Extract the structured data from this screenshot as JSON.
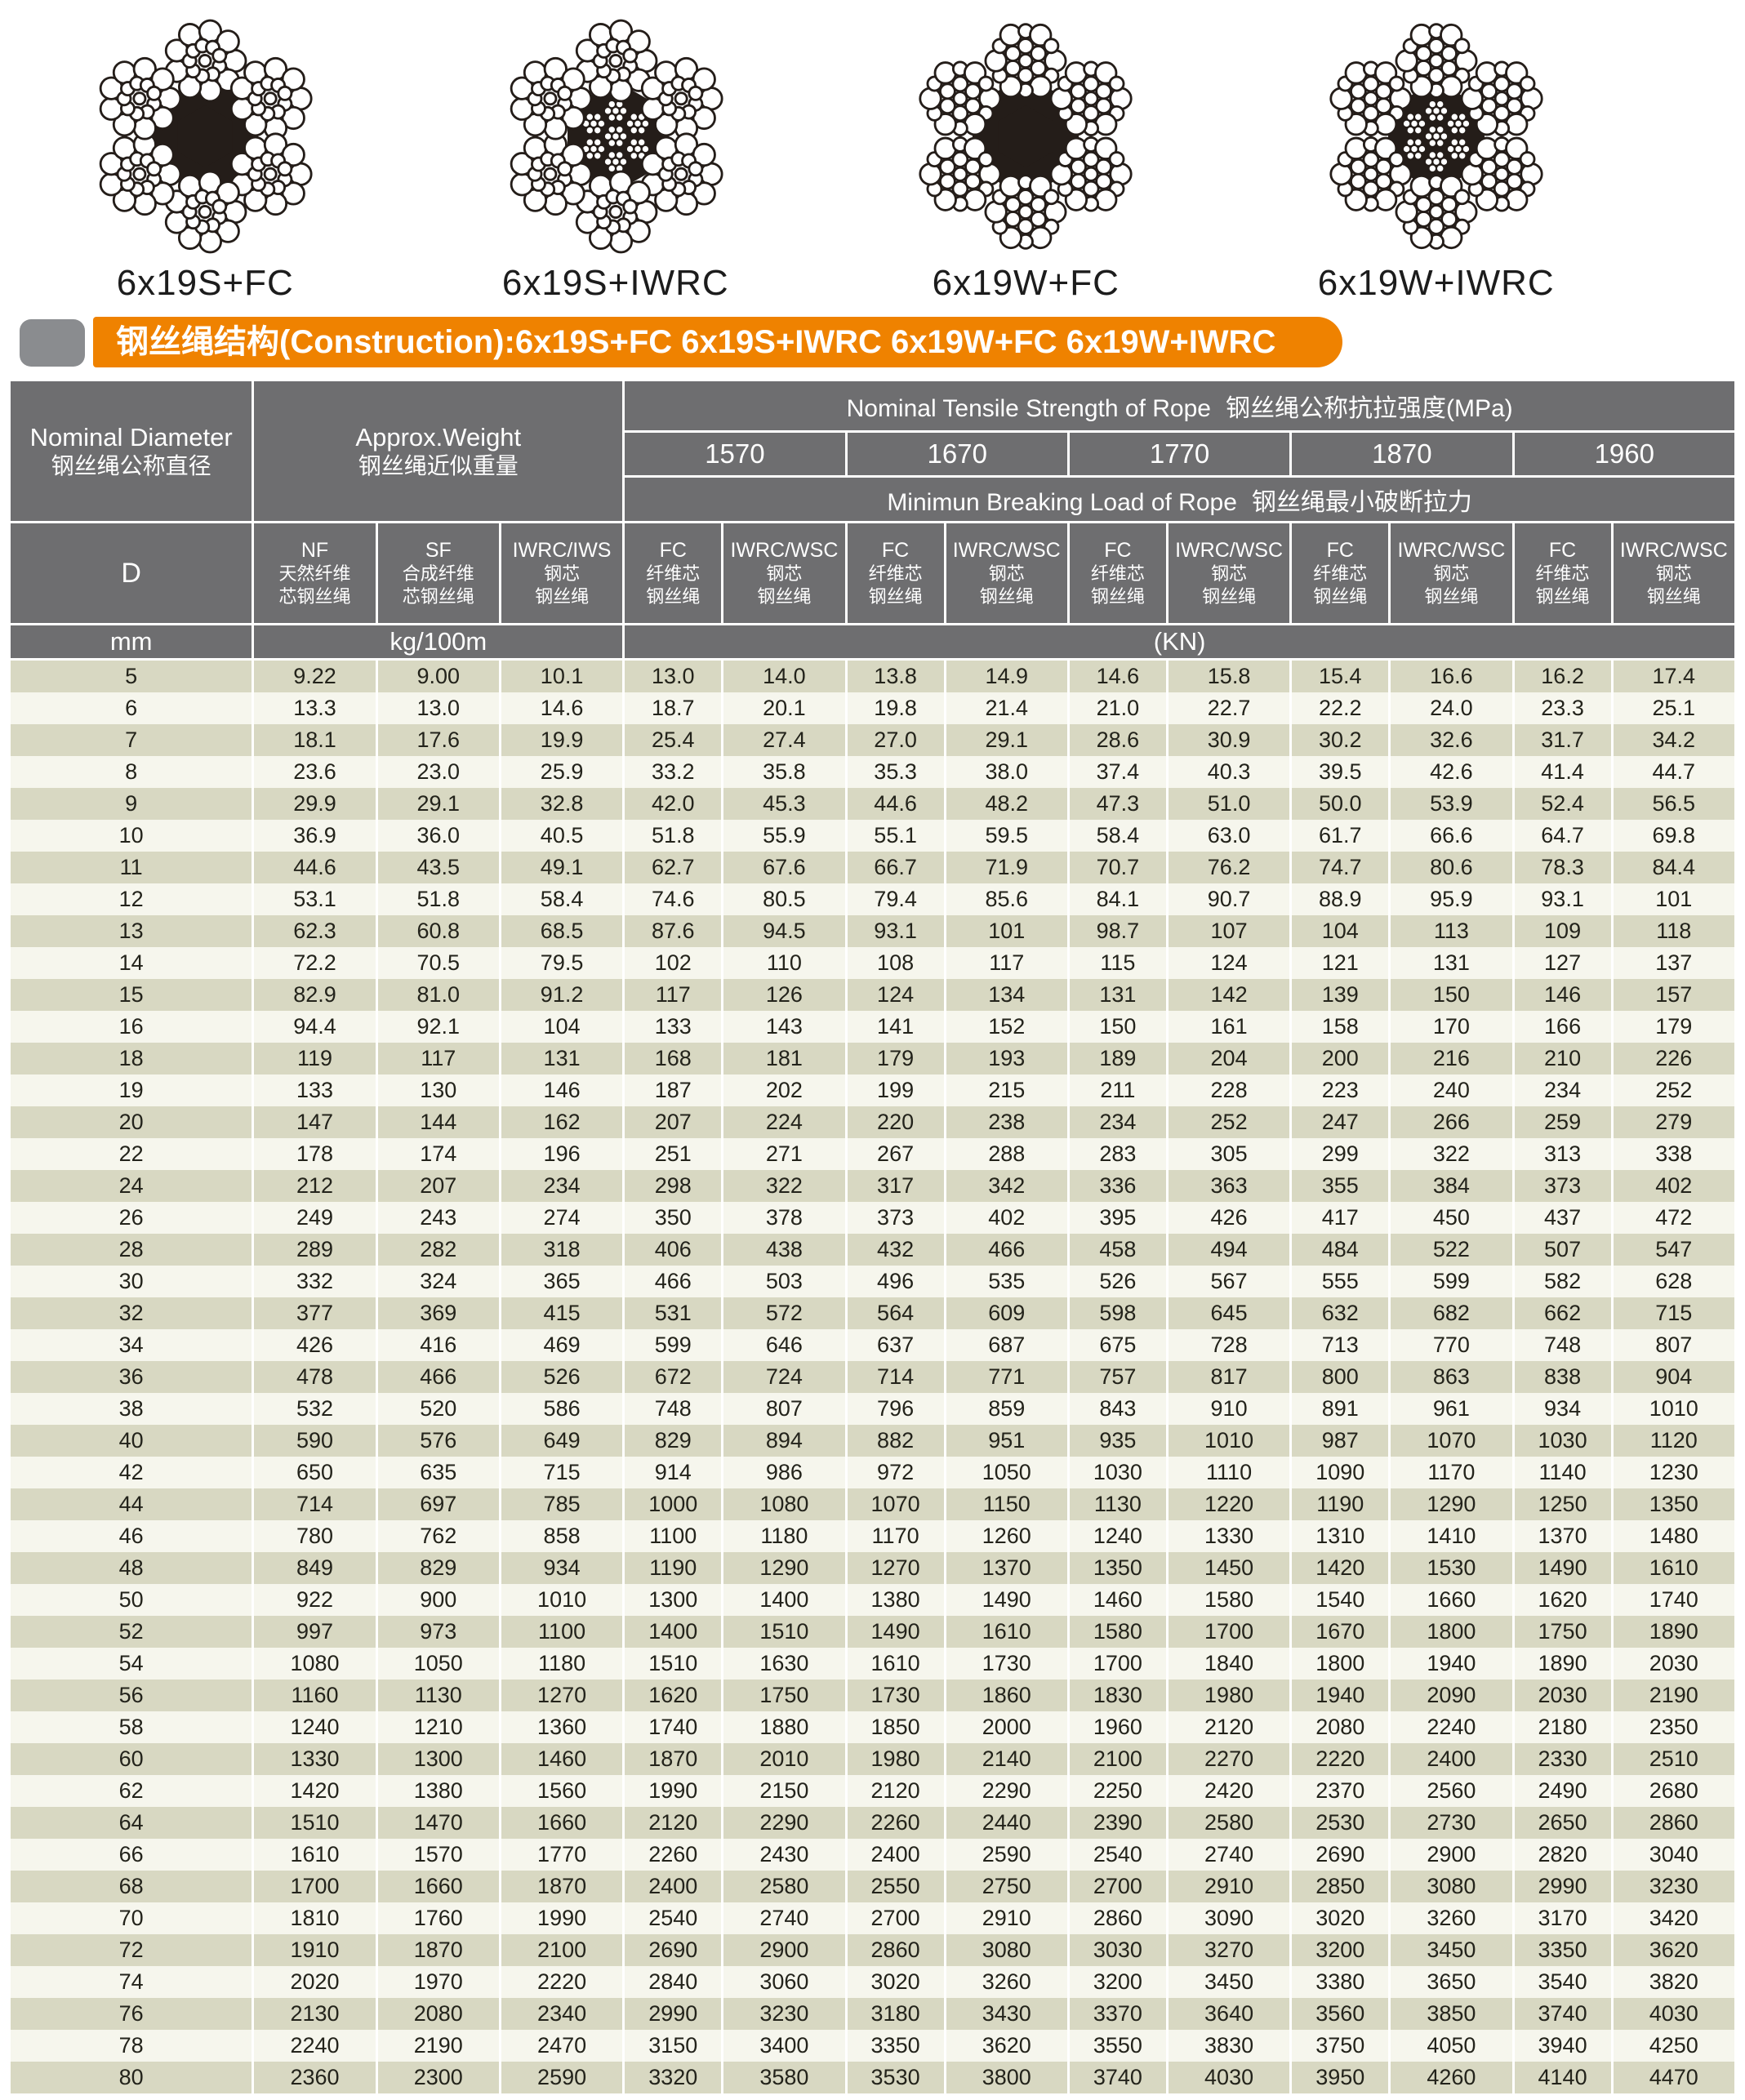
{
  "ropes": [
    {
      "label": "6x19S+FC",
      "core": "fc",
      "strand": "seale"
    },
    {
      "label": "6x19S+IWRC",
      "core": "iwrc",
      "strand": "seale"
    },
    {
      "label": "6x19W+FC",
      "core": "fc",
      "strand": "warrington"
    },
    {
      "label": "6x19W+IWRC",
      "core": "iwrc",
      "strand": "warrington"
    }
  ],
  "banner": {
    "text": "钢丝绳结构(Construction):6x19S+FC 6x19S+IWRC  6x19W+FC 6x19W+IWRC",
    "color": "#ef8200"
  },
  "colors": {
    "header_gray": "#6e6e70",
    "row_dark": "#d8d8c2",
    "row_light": "#f6f6ed",
    "banner_orange": "#ef8200"
  },
  "table": {
    "header": {
      "diameter": {
        "en": "Nominal Diameter",
        "zh": "钢丝绳公称直径",
        "symbol": "D",
        "unit": "mm"
      },
      "weight": {
        "en": "Approx.Weight",
        "zh": "钢丝绳近似重量",
        "unit": "kg/100m"
      },
      "weight_columns": [
        {
          "code": "NF",
          "zh1": "天然纤维",
          "zh2": "芯钢丝绳"
        },
        {
          "code": "SF",
          "zh1": "合成纤维",
          "zh2": "芯钢丝绳"
        },
        {
          "code": "IWRC/IWS",
          "zh1": "钢芯",
          "zh2": "钢丝绳"
        }
      ],
      "tensile_title": {
        "en": "Nominal Tensile Strength of Rope",
        "zh": "钢丝绳公称抗拉强度(MPa)"
      },
      "grades": [
        "1570",
        "1670",
        "1770",
        "1870",
        "1960"
      ],
      "breaking_title": {
        "en": "Minimun Breaking Load of Rope",
        "zh": "钢丝绳最小破断拉力"
      },
      "load_columns": [
        {
          "code": "FC",
          "zh1": "纤维芯",
          "zh2": "钢丝绳"
        },
        {
          "code": "IWRC/WSC",
          "zh1": "钢芯",
          "zh2": "钢丝绳"
        }
      ],
      "load_unit": "(KN)"
    },
    "rows": [
      [
        "5",
        "9.22",
        "9.00",
        "10.1",
        "13.0",
        "14.0",
        "13.8",
        "14.9",
        "14.6",
        "15.8",
        "15.4",
        "16.6",
        "16.2",
        "17.4"
      ],
      [
        "6",
        "13.3",
        "13.0",
        "14.6",
        "18.7",
        "20.1",
        "19.8",
        "21.4",
        "21.0",
        "22.7",
        "22.2",
        "24.0",
        "23.3",
        "25.1"
      ],
      [
        "7",
        "18.1",
        "17.6",
        "19.9",
        "25.4",
        "27.4",
        "27.0",
        "29.1",
        "28.6",
        "30.9",
        "30.2",
        "32.6",
        "31.7",
        "34.2"
      ],
      [
        "8",
        "23.6",
        "23.0",
        "25.9",
        "33.2",
        "35.8",
        "35.3",
        "38.0",
        "37.4",
        "40.3",
        "39.5",
        "42.6",
        "41.4",
        "44.7"
      ],
      [
        "9",
        "29.9",
        "29.1",
        "32.8",
        "42.0",
        "45.3",
        "44.6",
        "48.2",
        "47.3",
        "51.0",
        "50.0",
        "53.9",
        "52.4",
        "56.5"
      ],
      [
        "10",
        "36.9",
        "36.0",
        "40.5",
        "51.8",
        "55.9",
        "55.1",
        "59.5",
        "58.4",
        "63.0",
        "61.7",
        "66.6",
        "64.7",
        "69.8"
      ],
      [
        "11",
        "44.6",
        "43.5",
        "49.1",
        "62.7",
        "67.6",
        "66.7",
        "71.9",
        "70.7",
        "76.2",
        "74.7",
        "80.6",
        "78.3",
        "84.4"
      ],
      [
        "12",
        "53.1",
        "51.8",
        "58.4",
        "74.6",
        "80.5",
        "79.4",
        "85.6",
        "84.1",
        "90.7",
        "88.9",
        "95.9",
        "93.1",
        "101"
      ],
      [
        "13",
        "62.3",
        "60.8",
        "68.5",
        "87.6",
        "94.5",
        "93.1",
        "101",
        "98.7",
        "107",
        "104",
        "113",
        "109",
        "118"
      ],
      [
        "14",
        "72.2",
        "70.5",
        "79.5",
        "102",
        "110",
        "108",
        "117",
        "115",
        "124",
        "121",
        "131",
        "127",
        "137"
      ],
      [
        "15",
        "82.9",
        "81.0",
        "91.2",
        "117",
        "126",
        "124",
        "134",
        "131",
        "142",
        "139",
        "150",
        "146",
        "157"
      ],
      [
        "16",
        "94.4",
        "92.1",
        "104",
        "133",
        "143",
        "141",
        "152",
        "150",
        "161",
        "158",
        "170",
        "166",
        "179"
      ],
      [
        "18",
        "119",
        "117",
        "131",
        "168",
        "181",
        "179",
        "193",
        "189",
        "204",
        "200",
        "216",
        "210",
        "226"
      ],
      [
        "19",
        "133",
        "130",
        "146",
        "187",
        "202",
        "199",
        "215",
        "211",
        "228",
        "223",
        "240",
        "234",
        "252"
      ],
      [
        "20",
        "147",
        "144",
        "162",
        "207",
        "224",
        "220",
        "238",
        "234",
        "252",
        "247",
        "266",
        "259",
        "279"
      ],
      [
        "22",
        "178",
        "174",
        "196",
        "251",
        "271",
        "267",
        "288",
        "283",
        "305",
        "299",
        "322",
        "313",
        "338"
      ],
      [
        "24",
        "212",
        "207",
        "234",
        "298",
        "322",
        "317",
        "342",
        "336",
        "363",
        "355",
        "384",
        "373",
        "402"
      ],
      [
        "26",
        "249",
        "243",
        "274",
        "350",
        "378",
        "373",
        "402",
        "395",
        "426",
        "417",
        "450",
        "437",
        "472"
      ],
      [
        "28",
        "289",
        "282",
        "318",
        "406",
        "438",
        "432",
        "466",
        "458",
        "494",
        "484",
        "522",
        "507",
        "547"
      ],
      [
        "30",
        "332",
        "324",
        "365",
        "466",
        "503",
        "496",
        "535",
        "526",
        "567",
        "555",
        "599",
        "582",
        "628"
      ],
      [
        "32",
        "377",
        "369",
        "415",
        "531",
        "572",
        "564",
        "609",
        "598",
        "645",
        "632",
        "682",
        "662",
        "715"
      ],
      [
        "34",
        "426",
        "416",
        "469",
        "599",
        "646",
        "637",
        "687",
        "675",
        "728",
        "713",
        "770",
        "748",
        "807"
      ],
      [
        "36",
        "478",
        "466",
        "526",
        "672",
        "724",
        "714",
        "771",
        "757",
        "817",
        "800",
        "863",
        "838",
        "904"
      ],
      [
        "38",
        "532",
        "520",
        "586",
        "748",
        "807",
        "796",
        "859",
        "843",
        "910",
        "891",
        "961",
        "934",
        "1010"
      ],
      [
        "40",
        "590",
        "576",
        "649",
        "829",
        "894",
        "882",
        "951",
        "935",
        "1010",
        "987",
        "1070",
        "1030",
        "1120"
      ],
      [
        "42",
        "650",
        "635",
        "715",
        "914",
        "986",
        "972",
        "1050",
        "1030",
        "1110",
        "1090",
        "1170",
        "1140",
        "1230"
      ],
      [
        "44",
        "714",
        "697",
        "785",
        "1000",
        "1080",
        "1070",
        "1150",
        "1130",
        "1220",
        "1190",
        "1290",
        "1250",
        "1350"
      ],
      [
        "46",
        "780",
        "762",
        "858",
        "1100",
        "1180",
        "1170",
        "1260",
        "1240",
        "1330",
        "1310",
        "1410",
        "1370",
        "1480"
      ],
      [
        "48",
        "849",
        "829",
        "934",
        "1190",
        "1290",
        "1270",
        "1370",
        "1350",
        "1450",
        "1420",
        "1530",
        "1490",
        "1610"
      ],
      [
        "50",
        "922",
        "900",
        "1010",
        "1300",
        "1400",
        "1380",
        "1490",
        "1460",
        "1580",
        "1540",
        "1660",
        "1620",
        "1740"
      ],
      [
        "52",
        "997",
        "973",
        "1100",
        "1400",
        "1510",
        "1490",
        "1610",
        "1580",
        "1700",
        "1670",
        "1800",
        "1750",
        "1890"
      ],
      [
        "54",
        "1080",
        "1050",
        "1180",
        "1510",
        "1630",
        "1610",
        "1730",
        "1700",
        "1840",
        "1800",
        "1940",
        "1890",
        "2030"
      ],
      [
        "56",
        "1160",
        "1130",
        "1270",
        "1620",
        "1750",
        "1730",
        "1860",
        "1830",
        "1980",
        "1940",
        "2090",
        "2030",
        "2190"
      ],
      [
        "58",
        "1240",
        "1210",
        "1360",
        "1740",
        "1880",
        "1850",
        "2000",
        "1960",
        "2120",
        "2080",
        "2240",
        "2180",
        "2350"
      ],
      [
        "60",
        "1330",
        "1300",
        "1460",
        "1870",
        "2010",
        "1980",
        "2140",
        "2100",
        "2270",
        "2220",
        "2400",
        "2330",
        "2510"
      ],
      [
        "62",
        "1420",
        "1380",
        "1560",
        "1990",
        "2150",
        "2120",
        "2290",
        "2250",
        "2420",
        "2370",
        "2560",
        "2490",
        "2680"
      ],
      [
        "64",
        "1510",
        "1470",
        "1660",
        "2120",
        "2290",
        "2260",
        "2440",
        "2390",
        "2580",
        "2530",
        "2730",
        "2650",
        "2860"
      ],
      [
        "66",
        "1610",
        "1570",
        "1770",
        "2260",
        "2430",
        "2400",
        "2590",
        "2540",
        "2740",
        "2690",
        "2900",
        "2820",
        "3040"
      ],
      [
        "68",
        "1700",
        "1660",
        "1870",
        "2400",
        "2580",
        "2550",
        "2750",
        "2700",
        "2910",
        "2850",
        "3080",
        "2990",
        "3230"
      ],
      [
        "70",
        "1810",
        "1760",
        "1990",
        "2540",
        "2740",
        "2700",
        "2910",
        "2860",
        "3090",
        "3020",
        "3260",
        "3170",
        "3420"
      ],
      [
        "72",
        "1910",
        "1870",
        "2100",
        "2690",
        "2900",
        "2860",
        "3080",
        "3030",
        "3270",
        "3200",
        "3450",
        "3350",
        "3620"
      ],
      [
        "74",
        "2020",
        "1970",
        "2220",
        "2840",
        "3060",
        "3020",
        "3260",
        "3200",
        "3450",
        "3380",
        "3650",
        "3540",
        "3820"
      ],
      [
        "76",
        "2130",
        "2080",
        "2340",
        "2990",
        "3230",
        "3180",
        "3430",
        "3370",
        "3640",
        "3560",
        "3850",
        "3740",
        "4030"
      ],
      [
        "78",
        "2240",
        "2190",
        "2470",
        "3150",
        "3400",
        "3350",
        "3620",
        "3550",
        "3830",
        "3750",
        "4050",
        "3940",
        "4250"
      ],
      [
        "80",
        "2360",
        "2300",
        "2590",
        "3320",
        "3580",
        "3530",
        "3800",
        "3740",
        "4030",
        "3950",
        "4260",
        "4140",
        "4470"
      ]
    ]
  }
}
